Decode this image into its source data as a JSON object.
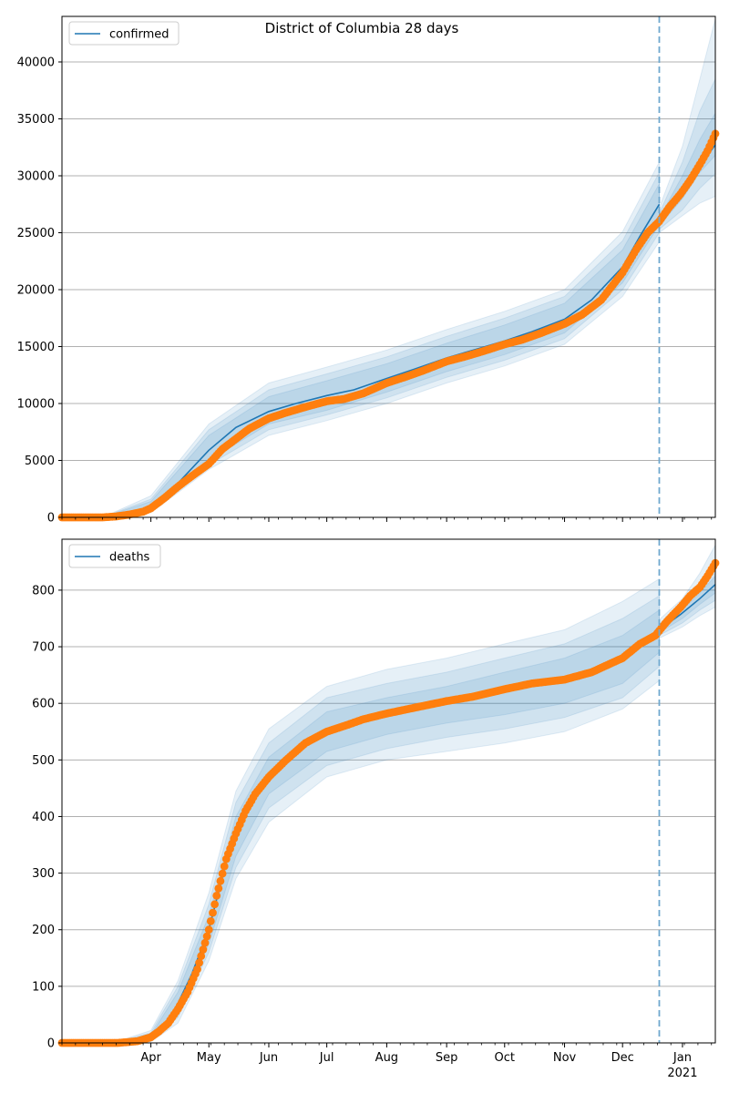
{
  "title": "District of Columbia 28 days",
  "colors": {
    "model": "#1f77b4",
    "observed": "#ff7f0e",
    "band": "#1f77b4",
    "forecast_line": "#6fa8cf",
    "grid": "#b0b0b0"
  },
  "x_axis": {
    "start": "2020-02-15",
    "end": "2021-01-18",
    "month_labels": [
      {
        "date": "2020-04-01",
        "label": "Apr"
      },
      {
        "date": "2020-05-01",
        "label": "May"
      },
      {
        "date": "2020-06-01",
        "label": "Jun"
      },
      {
        "date": "2020-07-01",
        "label": "Jul"
      },
      {
        "date": "2020-08-01",
        "label": "Aug"
      },
      {
        "date": "2020-09-01",
        "label": "Sep"
      },
      {
        "date": "2020-10-01",
        "label": "Oct"
      },
      {
        "date": "2020-11-01",
        "label": "Nov"
      },
      {
        "date": "2020-12-01",
        "label": "Dec"
      },
      {
        "date": "2021-01-01",
        "label": "Jan"
      }
    ],
    "year_label": "2021",
    "forecast_start": "2020-12-20"
  },
  "chart_data": [
    {
      "type": "line",
      "series_name": "confirmed",
      "ylim": [
        0,
        44000
      ],
      "yticks": [
        0,
        5000,
        10000,
        15000,
        20000,
        25000,
        30000,
        35000,
        40000
      ],
      "grid": "horizontal",
      "legend": "top-left",
      "model": {
        "x": [
          "2020-02-15",
          "2020-03-07",
          "2020-03-14",
          "2020-03-21",
          "2020-04-01",
          "2020-04-15",
          "2020-05-01",
          "2020-05-15",
          "2020-06-01",
          "2020-06-15",
          "2020-07-01",
          "2020-07-15",
          "2020-08-01",
          "2020-08-15",
          "2020-09-01",
          "2020-09-15",
          "2020-10-01",
          "2020-10-15",
          "2020-11-01",
          "2020-11-15",
          "2020-12-01",
          "2020-12-10",
          "2020-12-20"
        ],
        "y": [
          0,
          0,
          100,
          300,
          1000,
          3000,
          5900,
          7900,
          9300,
          10000,
          10700,
          11200,
          12200,
          13000,
          14000,
          14700,
          15500,
          16300,
          17400,
          19100,
          22000,
          24700,
          27500
        ],
        "forecast_x": [
          "2020-12-20",
          "2020-12-31",
          "2021-01-10",
          "2021-01-18"
        ],
        "forecast_y": [
          25900,
          28700,
          31000,
          32700
        ],
        "bands": [
          {
            "x": [
              "2020-03-07",
              "2020-04-01",
              "2020-05-01",
              "2020-06-01",
              "2020-07-01",
              "2020-08-01",
              "2020-09-01",
              "2020-10-01",
              "2020-11-01",
              "2020-12-01",
              "2020-12-20"
            ],
            "lower": [
              0,
              700,
              5000,
              8200,
              9400,
              11000,
              12800,
              14300,
              16200,
              20600,
              25700
            ],
            "upper": [
              0,
              1400,
              7200,
              10600,
              12000,
              13500,
              15300,
              16900,
              18800,
              23500,
              29300
            ]
          },
          {
            "x": [
              "2020-03-07",
              "2020-04-01",
              "2020-05-01",
              "2020-06-01",
              "2020-07-01",
              "2020-08-01",
              "2020-09-01",
              "2020-10-01",
              "2020-11-01",
              "2020-12-01",
              "2020-12-20"
            ],
            "lower": [
              0,
              550,
              4600,
              7700,
              9000,
              10500,
              12300,
              13800,
              15700,
              20000,
              25000
            ],
            "upper": [
              0,
              1600,
              7700,
              11200,
              12600,
              14100,
              15900,
              17500,
              19400,
              24300,
              30300
            ]
          },
          {
            "x": [
              "2020-03-07",
              "2020-04-01",
              "2020-05-01",
              "2020-06-01",
              "2020-07-01",
              "2020-08-01",
              "2020-09-01",
              "2020-10-01",
              "2020-11-01",
              "2020-12-01",
              "2020-12-20"
            ],
            "lower": [
              0,
              400,
              4200,
              7200,
              8500,
              10000,
              11800,
              13300,
              15200,
              19400,
              24200
            ],
            "upper": [
              0,
              1900,
              8200,
              11800,
              13200,
              14700,
              16500,
              18100,
              20000,
              25100,
              31200
            ]
          }
        ],
        "forecast_bands": [
          {
            "x": [
              "2020-12-20",
              "2021-01-01",
              "2021-01-10",
              "2021-01-18"
            ],
            "lower": [
              25600,
              28000,
              30300,
              31800
            ],
            "upper": [
              26300,
              30000,
              33200,
              35500
            ]
          },
          {
            "x": [
              "2020-12-20",
              "2021-01-01",
              "2021-01-10",
              "2021-01-18"
            ],
            "lower": [
              25300,
              27000,
              28900,
              30200
            ],
            "upper": [
              26700,
              31200,
              35700,
              38500
            ]
          },
          {
            "x": [
              "2020-12-20",
              "2021-01-01",
              "2021-01-10",
              "2021-01-18"
            ],
            "lower": [
              25000,
              26500,
              27600,
              28200
            ],
            "upper": [
              27200,
              32600,
              38500,
              43800
            ]
          }
        ]
      },
      "observed": {
        "x": [
          "2020-02-15",
          "2020-03-07",
          "2020-03-14",
          "2020-03-21",
          "2020-03-28",
          "2020-04-01",
          "2020-04-08",
          "2020-04-15",
          "2020-04-22",
          "2020-05-01",
          "2020-05-08",
          "2020-05-15",
          "2020-05-22",
          "2020-06-01",
          "2020-06-10",
          "2020-06-20",
          "2020-07-01",
          "2020-07-10",
          "2020-07-20",
          "2020-08-01",
          "2020-08-10",
          "2020-08-20",
          "2020-09-01",
          "2020-09-10",
          "2020-09-20",
          "2020-10-01",
          "2020-10-10",
          "2020-10-20",
          "2020-11-01",
          "2020-11-10",
          "2020-11-20",
          "2020-12-01",
          "2020-12-08",
          "2020-12-14",
          "2020-12-20",
          "2020-12-25",
          "2020-12-31",
          "2021-01-05",
          "2021-01-10",
          "2021-01-14",
          "2021-01-18"
        ],
        "y": [
          0,
          0,
          80,
          250,
          500,
          800,
          1700,
          2700,
          3600,
          4700,
          6000,
          6900,
          7800,
          8700,
          9200,
          9700,
          10200,
          10400,
          10900,
          11800,
          12300,
          12900,
          13700,
          14100,
          14600,
          15200,
          15600,
          16200,
          17000,
          17800,
          19100,
          21500,
          23500,
          25000,
          26000,
          27200,
          28400,
          29600,
          31000,
          32200,
          33700
        ]
      }
    },
    {
      "type": "line",
      "series_name": "deaths",
      "ylim": [
        0,
        890
      ],
      "yticks": [
        0,
        100,
        200,
        300,
        400,
        500,
        600,
        700,
        800
      ],
      "grid": "horizontal",
      "legend": "top-left",
      "model": {
        "x": [
          "2020-02-15",
          "2020-03-15",
          "2020-03-25",
          "2020-04-01",
          "2020-04-08",
          "2020-04-15",
          "2020-04-22",
          "2020-05-01",
          "2020-05-10",
          "2020-05-20",
          "2020-06-01",
          "2020-06-15",
          "2020-07-01",
          "2020-07-15",
          "2020-08-01",
          "2020-08-15",
          "2020-09-01",
          "2020-09-15",
          "2020-10-01",
          "2020-10-15",
          "2020-11-01",
          "2020-11-15",
          "2020-12-01",
          "2020-12-10",
          "2020-12-20"
        ],
        "y": [
          0,
          0,
          2,
          10,
          30,
          70,
          120,
          200,
          320,
          420,
          470,
          520,
          550,
          565,
          580,
          590,
          603,
          612,
          625,
          637,
          645,
          660,
          680,
          705,
          725
        ],
        "forecast_x": [
          "2020-12-20",
          "2020-12-31",
          "2021-01-10",
          "2021-01-18"
        ],
        "forecast_y": [
          730,
          757,
          785,
          810
        ],
        "bands": [
          {
            "x": [
              "2020-03-15",
              "2020-04-01",
              "2020-04-15",
              "2020-05-01",
              "2020-05-15",
              "2020-06-01",
              "2020-07-01",
              "2020-08-01",
              "2020-09-01",
              "2020-10-01",
              "2020-11-01",
              "2020-12-01",
              "2020-12-20"
            ],
            "lower": [
              0,
              6,
              55,
              175,
              330,
              440,
              515,
              545,
              565,
              580,
              600,
              635,
              690
            ],
            "upper": [
              1,
              14,
              90,
              225,
              400,
              505,
              585,
              610,
              630,
              655,
              680,
              720,
              765
            ]
          },
          {
            "x": [
              "2020-03-15",
              "2020-04-01",
              "2020-04-15",
              "2020-05-01",
              "2020-05-15",
              "2020-06-01",
              "2020-07-01",
              "2020-08-01",
              "2020-09-01",
              "2020-10-01",
              "2020-11-01",
              "2020-12-01",
              "2020-12-20"
            ],
            "lower": [
              0,
              4,
              45,
              160,
              310,
              415,
              490,
              520,
              540,
              555,
              575,
              610,
              665
            ],
            "upper": [
              2,
              18,
              100,
              245,
              425,
              530,
              610,
              635,
              655,
              680,
              705,
              750,
              790
            ]
          },
          {
            "x": [
              "2020-03-15",
              "2020-04-01",
              "2020-04-15",
              "2020-05-01",
              "2020-05-15",
              "2020-06-01",
              "2020-07-01",
              "2020-08-01",
              "2020-09-01",
              "2020-10-01",
              "2020-11-01",
              "2020-12-01",
              "2020-12-20"
            ],
            "lower": [
              0,
              2,
              35,
              145,
              290,
              390,
              470,
              500,
              515,
              530,
              550,
              590,
              640
            ],
            "upper": [
              3,
              22,
              110,
              265,
              445,
              555,
              630,
              660,
              680,
              705,
              730,
              780,
              820
            ]
          }
        ],
        "forecast_bands": [
          {
            "x": [
              "2020-12-20",
              "2021-01-01",
              "2021-01-10",
              "2021-01-18"
            ],
            "lower": [
              725,
              750,
              775,
              795
            ],
            "upper": [
              735,
              765,
              795,
              825
            ]
          },
          {
            "x": [
              "2020-12-20",
              "2021-01-01",
              "2021-01-10",
              "2021-01-18"
            ],
            "lower": [
              720,
              742,
              765,
              782
            ],
            "upper": [
              740,
              775,
              810,
              850
            ]
          },
          {
            "x": [
              "2020-12-20",
              "2021-01-01",
              "2021-01-10",
              "2021-01-18"
            ],
            "lower": [
              715,
              735,
              755,
              770
            ],
            "upper": [
              748,
              785,
              830,
              880
            ]
          }
        ]
      },
      "observed": {
        "x": [
          "2020-02-15",
          "2020-03-15",
          "2020-03-25",
          "2020-04-01",
          "2020-04-05",
          "2020-04-10",
          "2020-04-15",
          "2020-04-20",
          "2020-04-25",
          "2020-05-01",
          "2020-05-05",
          "2020-05-10",
          "2020-05-15",
          "2020-05-20",
          "2020-05-25",
          "2020-06-01",
          "2020-06-10",
          "2020-06-20",
          "2020-07-01",
          "2020-07-10",
          "2020-07-20",
          "2020-08-01",
          "2020-08-15",
          "2020-09-01",
          "2020-09-15",
          "2020-10-01",
          "2020-10-15",
          "2020-11-01",
          "2020-11-15",
          "2020-12-01",
          "2020-12-10",
          "2020-12-18",
          "2020-12-24",
          "2020-12-31",
          "2021-01-05",
          "2021-01-10",
          "2021-01-14",
          "2021-01-18"
        ],
        "y": [
          0,
          0,
          3,
          10,
          20,
          35,
          60,
          90,
          130,
          200,
          260,
          325,
          370,
          410,
          440,
          470,
          500,
          530,
          550,
          560,
          572,
          582,
          592,
          604,
          612,
          625,
          635,
          642,
          655,
          680,
          705,
          720,
          745,
          770,
          790,
          805,
          825,
          848
        ]
      }
    }
  ]
}
